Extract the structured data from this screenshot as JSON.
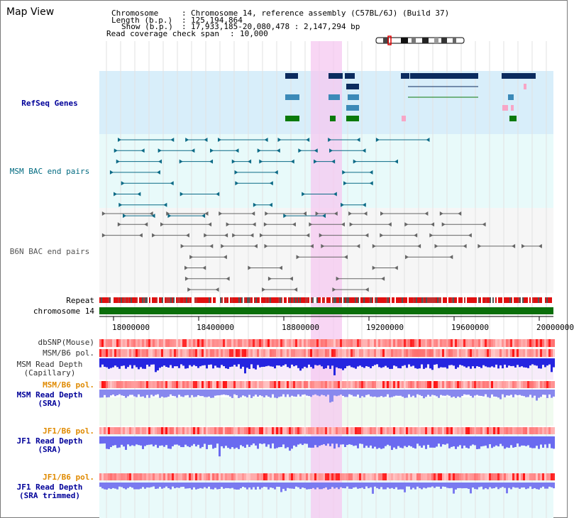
{
  "title": "Map View",
  "info": {
    "chromosome_label": "Chromosome",
    "chromosome_value": "Chromosome 14, reference assembly (C57BL/6J) (Build 37)",
    "length_label": "Length (b.p.)",
    "length_value": "125,194,864",
    "show_label": "Show (b.p.)",
    "show_value": "17,933,185-20,080,478 : 2,147,294 bp",
    "coverage_label": "Read coverage check span",
    "coverage_value": "10,000"
  },
  "tracks": {
    "refseq": "RefSeq Genes",
    "msm_bac": "MSM BAC end pairs",
    "b6n_bac": "B6N BAC end pairs",
    "repeat": "Repeat",
    "chromosome": "chromosome 14",
    "dbsnp": "dbSNP(Mouse)",
    "msm_b6_pol": "MSM/B6 pol.",
    "msm_depth_cap_1": "MSM Read Depth",
    "msm_depth_cap_2": "(Capillary)",
    "msm_b6_pol_2": "MSM/B6 pol.",
    "msm_depth_sra_1": "MSM Read Depth",
    "msm_depth_sra_2": "(SRA)",
    "jf1_b6_pol": "JF1/B6 pol.",
    "jf1_depth_sra_1": "JF1 Read Depth",
    "jf1_depth_sra_2": "(SRA)",
    "jf1_b6_pol_2": "JF1/B6 pol.",
    "jf1_depth_trim_1": "JF1 Read Depth",
    "jf1_depth_trim_2": "(SRA trimmed)"
  },
  "axis": {
    "ticks": [
      "18000000",
      "18400000",
      "18800000",
      "19200000",
      "19600000",
      "20000000"
    ]
  },
  "colors": {
    "gene_navy": "#0b2b5e",
    "gene_blue": "#3c8ab8",
    "gene_green": "#0b7a0b",
    "gene_pink": "#f7a6c6",
    "msm_bac": "#0b6a86",
    "b6n_bac": "#666666",
    "highlight": "#f6c8f0",
    "label_navy": "#000099",
    "label_teal": "#006a80",
    "label_orange": "#e08a00"
  }
}
